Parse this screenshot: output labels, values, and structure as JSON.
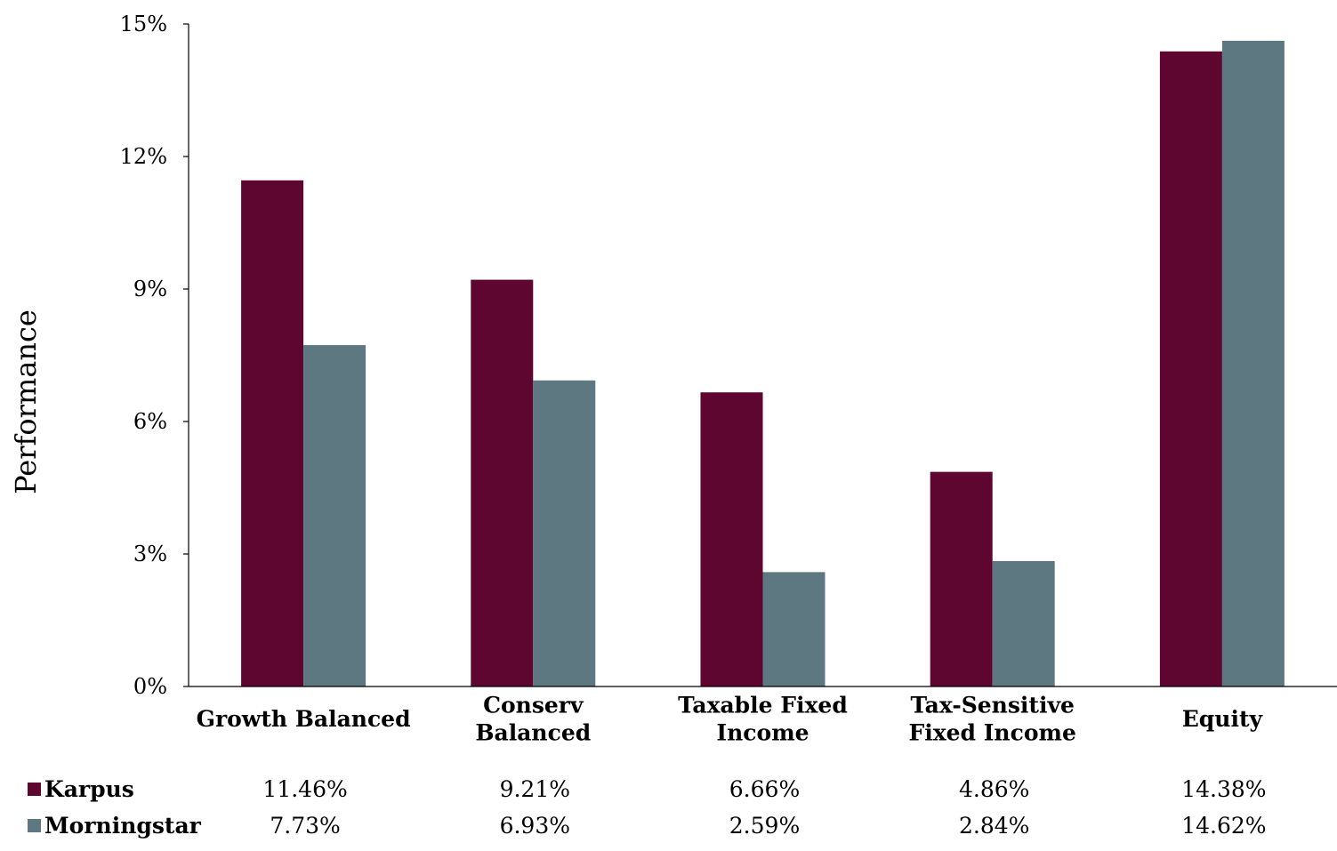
{
  "chart_data": {
    "type": "bar",
    "title": "",
    "xlabel": "",
    "ylabel": "Performance",
    "ylim": [
      0,
      15
    ],
    "yticks": [
      0,
      3,
      6,
      9,
      12,
      15
    ],
    "ytick_labels": [
      "0%",
      "3%",
      "6%",
      "9%",
      "12%",
      "15%"
    ],
    "grid": false,
    "legend": "data-table-below",
    "categories": [
      "Growth Balanced",
      "Conserv Balanced",
      "Taxable Fixed Income",
      "Tax-Sensitive Fixed Income",
      "Equity"
    ],
    "category_label_lines": [
      [
        "Growth Balanced"
      ],
      [
        "Conserv",
        "Balanced"
      ],
      [
        "Taxable Fixed",
        "Income"
      ],
      [
        "Tax-Sensitive",
        "Fixed Income"
      ],
      [
        "Equity"
      ]
    ],
    "series": [
      {
        "name": "Karpus",
        "color": "#5f0630",
        "values": [
          11.46,
          9.21,
          6.66,
          4.86,
          14.38
        ],
        "value_labels": [
          "11.46%",
          "9.21%",
          "6.66%",
          "4.86%",
          "14.38%"
        ]
      },
      {
        "name": "Morningstar",
        "color": "#5e7882",
        "values": [
          7.73,
          6.93,
          2.59,
          2.84,
          14.62
        ],
        "value_labels": [
          "7.73%",
          "6.93%",
          "2.59%",
          "2.84%",
          "14.62%"
        ]
      }
    ]
  }
}
